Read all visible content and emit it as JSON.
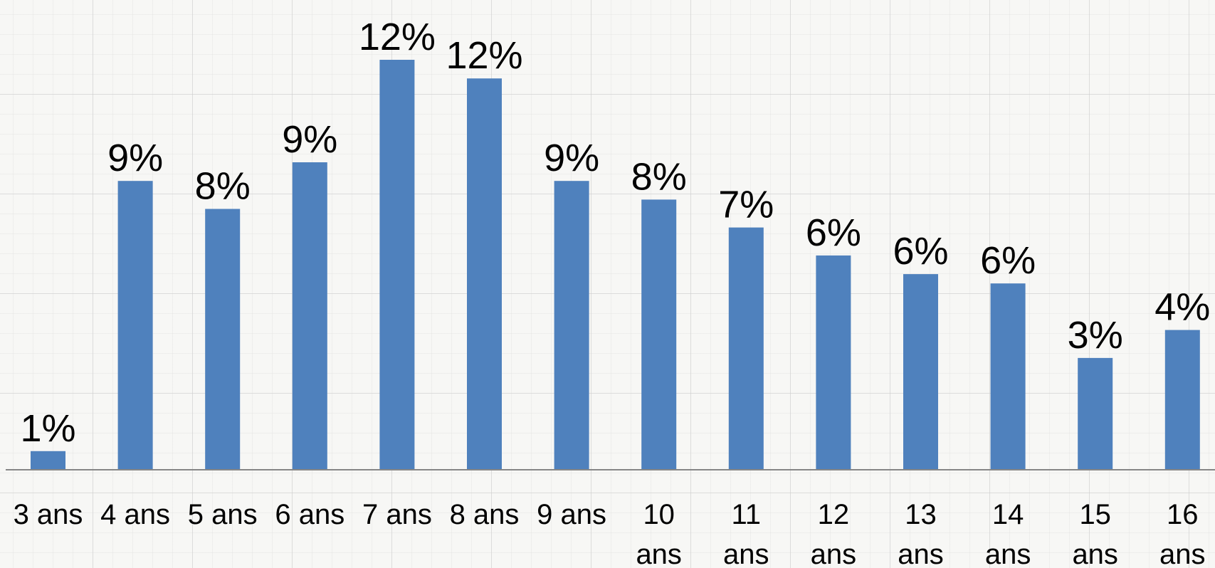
{
  "chart_data": {
    "type": "bar",
    "title": "",
    "xlabel": "",
    "ylabel": "",
    "categories": [
      "3 ans",
      "4 ans",
      "5 ans",
      "6 ans",
      "7 ans",
      "8 ans",
      "9 ans",
      "10 ans",
      "11 ans",
      "12 ans",
      "13 ans",
      "14 ans",
      "15 ans",
      "16 ans"
    ],
    "values": [
      1,
      9,
      8,
      9,
      12,
      12,
      9,
      8,
      7,
      6,
      6,
      6,
      3,
      4
    ],
    "plotted_values": [
      1.0,
      15.5,
      14.0,
      16.5,
      22.0,
      21.0,
      15.5,
      14.5,
      13.0,
      11.5,
      10.5,
      10.0,
      6.0,
      7.5
    ],
    "value_labels": [
      "1%",
      "9%",
      "8%",
      "9%",
      "12%",
      "12%",
      "9%",
      "8%",
      "7%",
      "6%",
      "6%",
      "6%",
      "3%",
      "4%"
    ],
    "ylim": [
      0,
      22
    ],
    "y_axis_visible": false,
    "grid": false,
    "legend": "none",
    "bar_color": "#4f81bd",
    "axis_color": "#868686"
  }
}
